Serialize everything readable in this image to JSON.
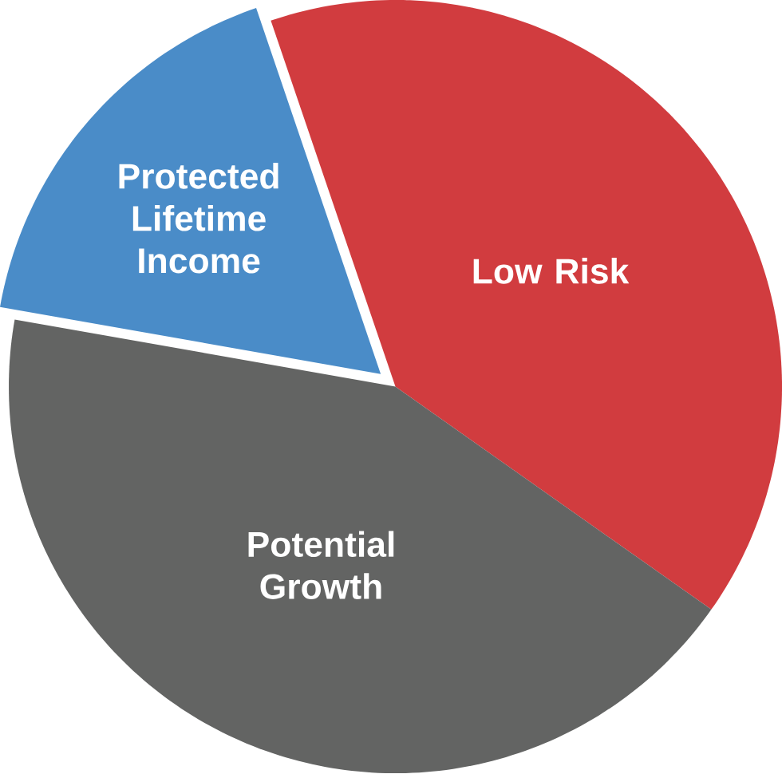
{
  "chart_data": {
    "type": "pie",
    "categories": [
      "Protected Lifetime Income",
      "Low Risk",
      "Potential Growth"
    ],
    "values": [
      17,
      40,
      43
    ],
    "colors": [
      "#4a8cc8",
      "#d13c3f",
      "#636463"
    ]
  }
}
